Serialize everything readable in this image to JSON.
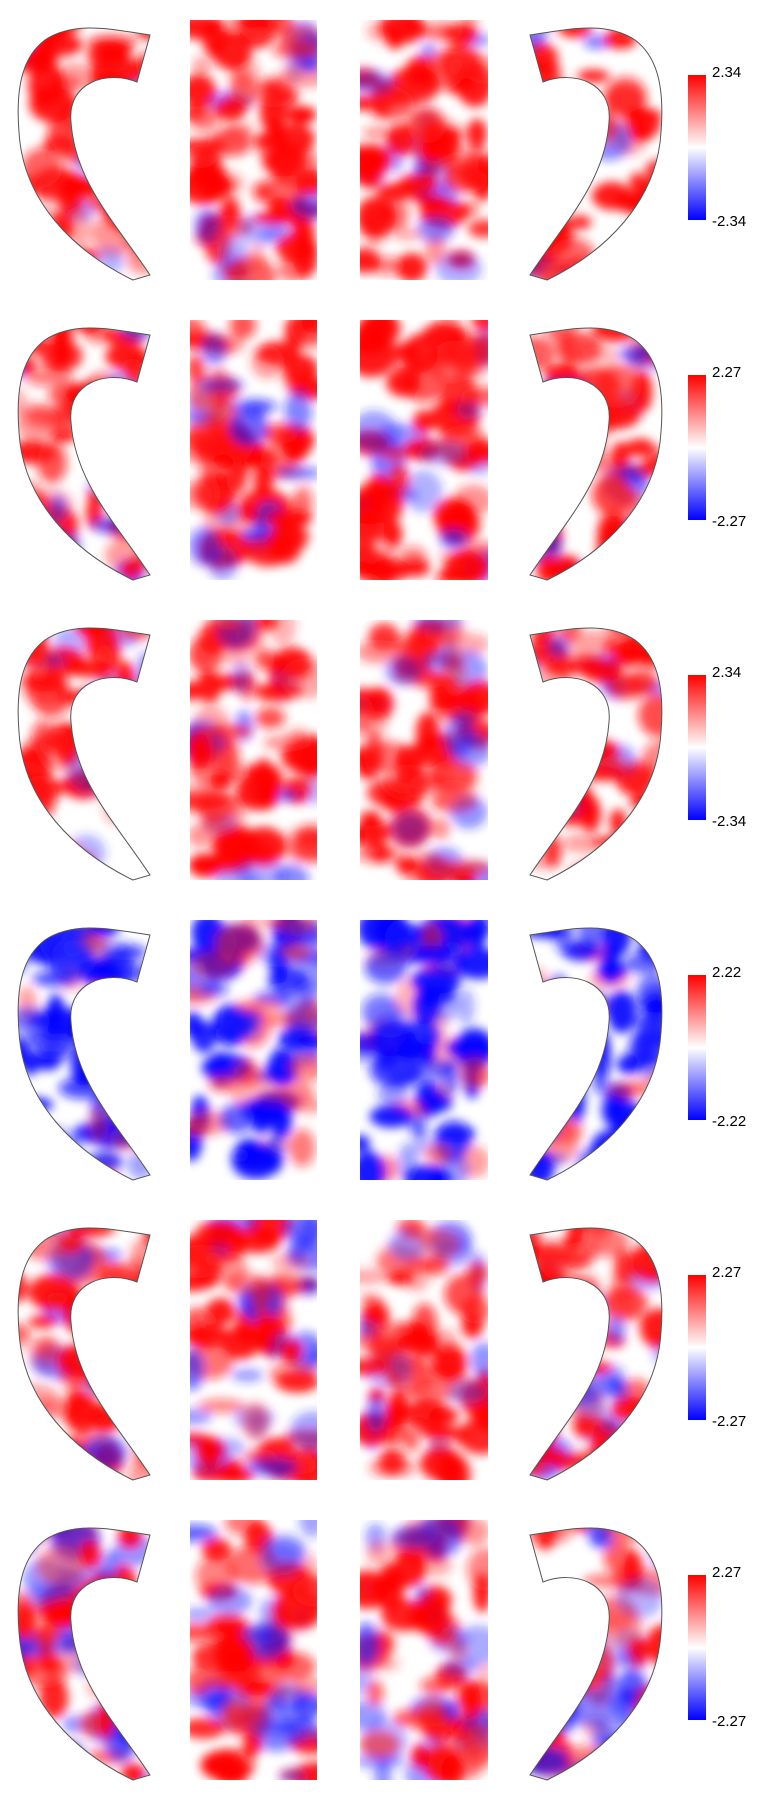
{
  "rows": [
    {
      "colorbar": {
        "max": "2.34",
        "min": "-2.34"
      }
    },
    {
      "colorbar": {
        "max": "2.27",
        "min": "-2.27"
      }
    },
    {
      "colorbar": {
        "max": "2.34",
        "min": "-2.34"
      }
    },
    {
      "colorbar": {
        "max": "2.22",
        "min": "-2.22"
      }
    },
    {
      "colorbar": {
        "max": "2.27",
        "min": "-2.27"
      }
    },
    {
      "colorbar": {
        "max": "2.27",
        "min": "-2.27"
      }
    }
  ]
}
